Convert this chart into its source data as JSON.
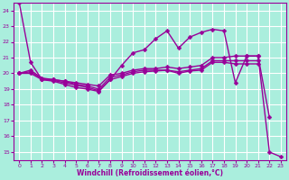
{
  "background_color": "#aaeedd",
  "grid_color": "#ffffff",
  "line_color": "#990099",
  "marker": "D",
  "markersize": 2.5,
  "linewidth": 1.0,
  "xlabel": "Windchill (Refroidissement éolien,°C)",
  "xlim": [
    -0.5,
    23.5
  ],
  "ylim": [
    14.5,
    24.5
  ],
  "yticks": [
    15,
    16,
    17,
    18,
    19,
    20,
    21,
    22,
    23,
    24
  ],
  "xticks": [
    0,
    1,
    2,
    3,
    4,
    5,
    6,
    7,
    8,
    9,
    10,
    11,
    12,
    13,
    14,
    15,
    16,
    17,
    18,
    19,
    20,
    21,
    22,
    23
  ],
  "series": [
    {
      "x": [
        0,
        1,
        2,
        3,
        4,
        5,
        6,
        7,
        8,
        9,
        10,
        11,
        12,
        13,
        14,
        15,
        16,
        17,
        18,
        19,
        20,
        21,
        22,
        23
      ],
      "y": [
        24.5,
        20.7,
        19.6,
        19.5,
        19.3,
        19.1,
        19.0,
        18.85,
        19.6,
        20.5,
        21.3,
        21.5,
        22.2,
        22.7,
        21.6,
        22.3,
        22.6,
        22.8,
        22.7,
        19.4,
        21.1,
        21.1,
        15.0,
        14.7
      ]
    },
    {
      "x": [
        0,
        1,
        2,
        3,
        4,
        5,
        6,
        7,
        8,
        9,
        10,
        11,
        12,
        13,
        14,
        15,
        16,
        17,
        18,
        19,
        20,
        21,
        22
      ],
      "y": [
        20.0,
        20.2,
        19.7,
        19.6,
        19.5,
        19.4,
        19.3,
        19.2,
        19.9,
        20.0,
        20.2,
        20.3,
        20.3,
        20.4,
        20.3,
        20.4,
        20.5,
        21.0,
        21.0,
        21.1,
        21.1,
        21.1,
        17.2
      ]
    },
    {
      "x": [
        0,
        1,
        2,
        3,
        4,
        5,
        6,
        7,
        8,
        9,
        10,
        11,
        12,
        13,
        14,
        15,
        16,
        17,
        18,
        19,
        20,
        21
      ],
      "y": [
        20.0,
        20.1,
        19.65,
        19.6,
        19.5,
        19.3,
        19.2,
        19.0,
        19.75,
        19.9,
        20.1,
        20.2,
        20.2,
        20.2,
        20.1,
        20.2,
        20.3,
        20.8,
        20.8,
        20.8,
        20.8,
        20.8
      ]
    },
    {
      "x": [
        0,
        1,
        2,
        3,
        4,
        5,
        6,
        7,
        8,
        9,
        10,
        11,
        12,
        13,
        14,
        15,
        16,
        17,
        18,
        19,
        20,
        21
      ],
      "y": [
        20.0,
        20.0,
        19.6,
        19.55,
        19.4,
        19.25,
        19.1,
        18.9,
        19.6,
        19.8,
        20.0,
        20.1,
        20.15,
        20.2,
        20.0,
        20.15,
        20.2,
        20.7,
        20.7,
        20.6,
        20.6,
        20.6
      ]
    }
  ]
}
